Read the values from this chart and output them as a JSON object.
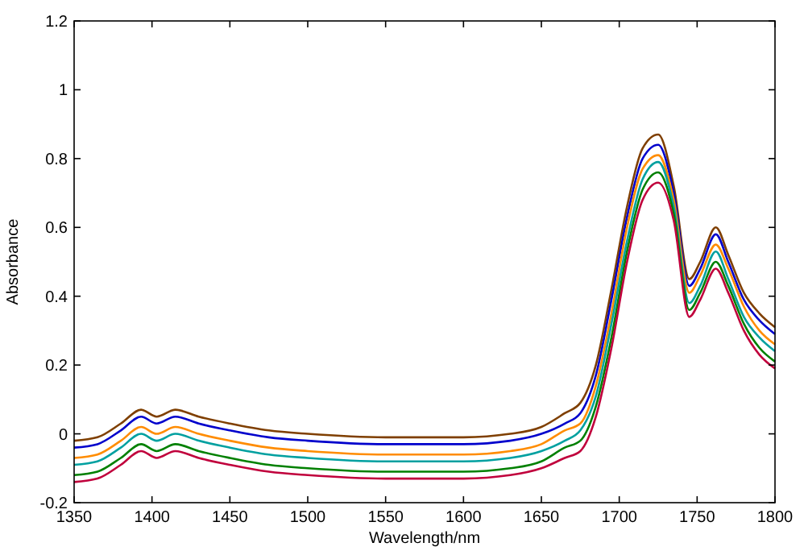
{
  "chart_data": {
    "type": "line",
    "xlabel": "Wavelength/nm",
    "ylabel": "Absorbance",
    "x": [
      1350,
      1365,
      1380,
      1393,
      1403,
      1415,
      1430,
      1450,
      1475,
      1500,
      1550,
      1600,
      1630,
      1650,
      1665,
      1675,
      1685,
      1695,
      1705,
      1715,
      1725,
      1735,
      1745,
      1752,
      1762,
      1770,
      1780,
      1790,
      1800
    ],
    "series": [
      {
        "color": "#7f3f00",
        "values": [
          -0.02,
          -0.01,
          0.03,
          0.07,
          0.05,
          0.07,
          0.05,
          0.03,
          0.01,
          0.0,
          -0.01,
          -0.01,
          0.0,
          0.02,
          0.06,
          0.09,
          0.2,
          0.42,
          0.66,
          0.83,
          0.87,
          0.72,
          0.45,
          0.5,
          0.6,
          0.52,
          0.41,
          0.35,
          0.31
        ]
      },
      {
        "color": "#0000cc",
        "values": [
          -0.04,
          -0.03,
          0.01,
          0.05,
          0.03,
          0.05,
          0.03,
          0.01,
          -0.01,
          -0.02,
          -0.03,
          -0.03,
          -0.02,
          0.0,
          0.03,
          0.06,
          0.17,
          0.39,
          0.63,
          0.8,
          0.84,
          0.7,
          0.43,
          0.48,
          0.58,
          0.5,
          0.39,
          0.33,
          0.29
        ]
      },
      {
        "color": "#ff8c00",
        "values": [
          -0.07,
          -0.06,
          -0.02,
          0.02,
          0.0,
          0.02,
          0.0,
          -0.02,
          -0.04,
          -0.05,
          -0.06,
          -0.06,
          -0.05,
          -0.03,
          0.01,
          0.03,
          0.14,
          0.35,
          0.6,
          0.77,
          0.81,
          0.68,
          0.41,
          0.46,
          0.55,
          0.48,
          0.37,
          0.3,
          0.26
        ]
      },
      {
        "color": "#00a0a0",
        "values": [
          -0.09,
          -0.08,
          -0.04,
          0.0,
          -0.02,
          0.0,
          -0.02,
          -0.04,
          -0.06,
          -0.07,
          -0.08,
          -0.08,
          -0.07,
          -0.05,
          -0.02,
          0.01,
          0.11,
          0.32,
          0.56,
          0.74,
          0.79,
          0.66,
          0.38,
          0.43,
          0.53,
          0.45,
          0.34,
          0.28,
          0.24
        ]
      },
      {
        "color": "#008000",
        "values": [
          -0.12,
          -0.11,
          -0.07,
          -0.03,
          -0.05,
          -0.03,
          -0.05,
          -0.07,
          -0.09,
          -0.1,
          -0.11,
          -0.11,
          -0.1,
          -0.08,
          -0.04,
          -0.02,
          0.08,
          0.28,
          0.53,
          0.71,
          0.76,
          0.64,
          0.36,
          0.41,
          0.5,
          0.43,
          0.32,
          0.25,
          0.21
        ]
      },
      {
        "color": "#c0003c",
        "values": [
          -0.14,
          -0.13,
          -0.09,
          -0.05,
          -0.07,
          -0.05,
          -0.07,
          -0.09,
          -0.11,
          -0.12,
          -0.13,
          -0.13,
          -0.12,
          -0.1,
          -0.07,
          -0.05,
          0.05,
          0.25,
          0.5,
          0.68,
          0.73,
          0.62,
          0.34,
          0.39,
          0.48,
          0.41,
          0.3,
          0.23,
          0.19
        ]
      }
    ],
    "xlim": [
      1350,
      1800
    ],
    "xticks": [
      1350,
      1400,
      1450,
      1500,
      1550,
      1600,
      1650,
      1700,
      1750,
      1800
    ],
    "ylim": [
      -0.2,
      1.2
    ],
    "yticks": [
      -0.2,
      0,
      0.2,
      0.4,
      0.6,
      0.8,
      1,
      1.2
    ],
    "grid": false,
    "marker": "none",
    "line_style": "solid"
  }
}
